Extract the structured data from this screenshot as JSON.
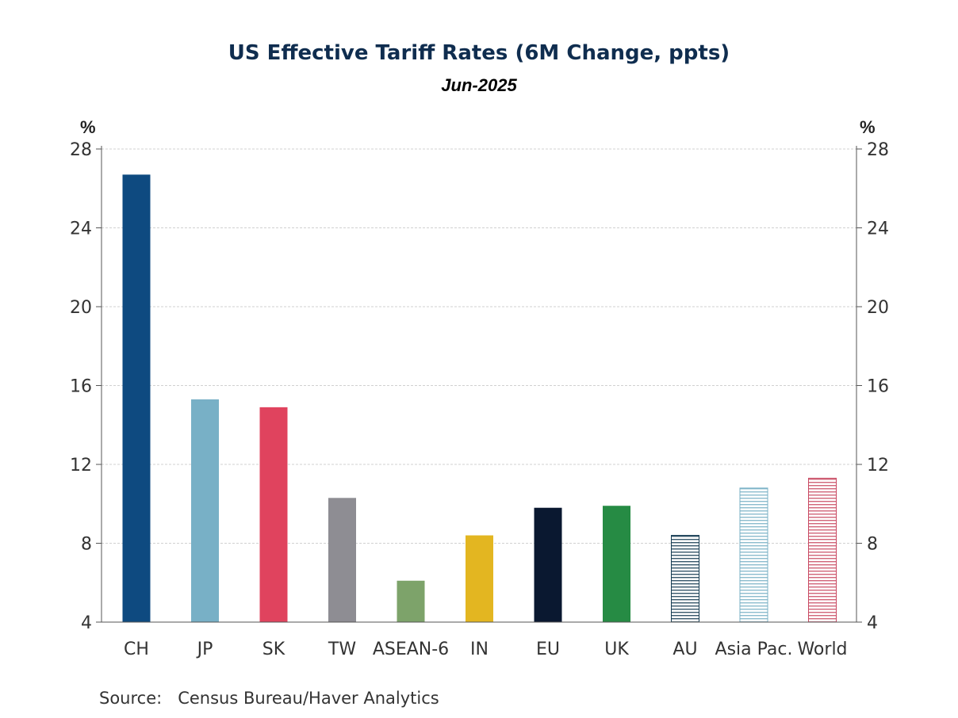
{
  "chart_data": {
    "type": "bar",
    "title": "US Effective Tariff Rates (6M Change, ppts)",
    "subtitle": "Jun-2025",
    "y_unit_left": "%",
    "y_unit_right": "%",
    "ylim": [
      4,
      28
    ],
    "yticks": [
      4,
      8,
      12,
      16,
      20,
      24,
      28
    ],
    "grid": true,
    "categories": [
      "CH",
      "JP",
      "SK",
      "TW",
      "ASEAN-6",
      "IN",
      "EU",
      "UK",
      "AU",
      "Asia Pac.",
      "World"
    ],
    "values": [
      26.7,
      15.3,
      14.9,
      10.3,
      6.1,
      8.4,
      9.8,
      9.9,
      8.4,
      10.8,
      11.3
    ],
    "bar_colors": [
      "#0e4a80",
      "#78b0c6",
      "#e0435e",
      "#8e8d93",
      "#7da36a",
      "#e3b621",
      "#0a1830",
      "#268b44",
      "#143b52",
      "#78b0c6",
      "#c94a63"
    ],
    "bar_fill_style": [
      "solid",
      "solid",
      "solid",
      "solid",
      "solid",
      "solid",
      "solid",
      "solid",
      "hatched",
      "hatched",
      "hatched"
    ],
    "source": "Source:   Census Bureau/Haver Analytics"
  }
}
